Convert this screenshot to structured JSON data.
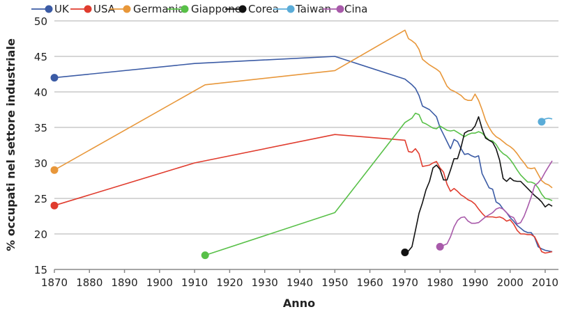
{
  "chart_data": {
    "type": "line",
    "title": "",
    "xlabel": "Anno",
    "ylabel": "% occupati nel settore industriale",
    "xlim": [
      1870,
      2013
    ],
    "ylim": [
      15,
      50
    ],
    "xticks": [
      1870,
      1880,
      1890,
      1900,
      1910,
      1920,
      1930,
      1940,
      1950,
      1960,
      1970,
      1980,
      1990,
      2000,
      2010
    ],
    "yticks": [
      15,
      20,
      25,
      30,
      35,
      40,
      45,
      50
    ],
    "grid": "horizontal",
    "legend": "top",
    "series": [
      {
        "name": "UK",
        "color": "#3b5ba5",
        "x": [
          1870,
          1910,
          1950,
          1970,
          1972,
          1973,
          1974,
          1975,
          1977,
          1979,
          1980,
          1981,
          1982,
          1983,
          1984,
          1985,
          1986,
          1987,
          1988,
          1989,
          1990,
          1991,
          1992,
          1993,
          1994,
          1995,
          1996,
          1997,
          1998,
          1999,
          2000,
          2001,
          2002,
          2003,
          2004,
          2005,
          2006,
          2007,
          2008,
          2009,
          2010,
          2011,
          2012
        ],
        "y": [
          42,
          44,
          45,
          41.8,
          41,
          40.5,
          39.5,
          38,
          37.5,
          36.5,
          35,
          34,
          33,
          32,
          33.3,
          33,
          32,
          31.2,
          31.3,
          31,
          30.8,
          31,
          28.5,
          27.5,
          26.5,
          26.3,
          24.5,
          24.2,
          23.5,
          23,
          22.3,
          21.8,
          21.2,
          20.8,
          20.4,
          20.2,
          20.2,
          19.5,
          18.2,
          17.9,
          17.7,
          17.6,
          17.5
        ]
      },
      {
        "name": "USA",
        "color": "#e03c2e",
        "x": [
          1870,
          1910,
          1950,
          1970,
          1971,
          1972,
          1973,
          1974,
          1975,
          1976,
          1977,
          1978,
          1979,
          1980,
          1981,
          1982,
          1983,
          1984,
          1985,
          1986,
          1987,
          1988,
          1989,
          1990,
          1991,
          1992,
          1993,
          1994,
          1995,
          1996,
          1997,
          1998,
          1999,
          2000,
          2001,
          2002,
          2003,
          2004,
          2005,
          2006,
          2007,
          2008,
          2009,
          2010,
          2011,
          2012
        ],
        "y": [
          24,
          30,
          34,
          33.2,
          31.6,
          31.5,
          32,
          31.3,
          29.5,
          29.6,
          29.7,
          30,
          30.2,
          29.3,
          28.7,
          27,
          26,
          26.4,
          26,
          25.5,
          25.2,
          24.8,
          24.6,
          24.2,
          23.5,
          22.9,
          22.4,
          22.4,
          22.4,
          22.3,
          22.4,
          22.2,
          21.8,
          22,
          21.4,
          20.5,
          20,
          20,
          19.9,
          19.9,
          19.6,
          18.6,
          17.5,
          17.3,
          17.4,
          17.5
        ]
      },
      {
        "name": "Germania",
        "color": "#e8973a",
        "x": [
          1870,
          1913,
          1950,
          1970,
          1971,
          1972,
          1973,
          1974,
          1975,
          1976,
          1977,
          1978,
          1979,
          1980,
          1981,
          1982,
          1983,
          1984,
          1985,
          1986,
          1987,
          1988,
          1989,
          1990,
          1991,
          1992,
          1993,
          1994,
          1995,
          1996,
          1997,
          1998,
          1999,
          2000,
          2001,
          2002,
          2003,
          2004,
          2005,
          2006,
          2007,
          2008,
          2009,
          2010,
          2011,
          2012
        ],
        "y": [
          29,
          41,
          43,
          48.7,
          47.5,
          47.2,
          46.8,
          46,
          44.6,
          44.2,
          43.8,
          43.5,
          43.2,
          42.8,
          41.8,
          40.8,
          40.3,
          40.1,
          39.8,
          39.5,
          39,
          38.8,
          38.8,
          39.7,
          38.8,
          37.5,
          36,
          35,
          34.2,
          33.7,
          33.4,
          33,
          32.6,
          32.3,
          31.9,
          31.3,
          30.6,
          30,
          29.3,
          29.2,
          29.3,
          28.4,
          27.5,
          27.1,
          26.9,
          26.5
        ]
      },
      {
        "name": "Giappone",
        "color": "#58c048",
        "x": [
          1913,
          1950,
          1970,
          1971,
          1972,
          1973,
          1974,
          1975,
          1976,
          1977,
          1978,
          1979,
          1980,
          1981,
          1982,
          1983,
          1984,
          1985,
          1986,
          1987,
          1988,
          1989,
          1990,
          1991,
          1992,
          1993,
          1994,
          1995,
          1996,
          1997,
          1998,
          1999,
          2000,
          2001,
          2002,
          2003,
          2004,
          2005,
          2006,
          2007,
          2008,
          2009,
          2010,
          2011,
          2012
        ],
        "y": [
          17,
          23,
          35.7,
          36,
          36.3,
          37,
          36.8,
          35.7,
          35.5,
          35.2,
          34.9,
          34.8,
          35.2,
          34.9,
          34.6,
          34.5,
          34.6,
          34.3,
          34,
          33.7,
          34,
          34.2,
          34.2,
          34.4,
          34.2,
          33.7,
          33.2,
          33.1,
          32.6,
          31.8,
          31.3,
          31,
          30.5,
          29.8,
          29,
          28.3,
          27.8,
          27.3,
          27.3,
          27.1,
          26.5,
          25.6,
          25,
          24.9,
          24.7
        ]
      },
      {
        "name": "Corea",
        "color": "#111111",
        "x": [
          1970,
          1971,
          1972,
          1973,
          1974,
          1975,
          1976,
          1977,
          1978,
          1979,
          1980,
          1981,
          1982,
          1983,
          1984,
          1985,
          1986,
          1987,
          1988,
          1989,
          1990,
          1991,
          1992,
          1993,
          1994,
          1995,
          1996,
          1997,
          1998,
          1999,
          2000,
          2001,
          2002,
          2003,
          2004,
          2005,
          2006,
          2007,
          2008,
          2009,
          2010,
          2011,
          2012
        ],
        "y": [
          17.4,
          17.6,
          18.2,
          20.5,
          22.9,
          24.4,
          26.2,
          27.4,
          29.3,
          29.7,
          29.1,
          27.6,
          27.6,
          29,
          30.6,
          30.6,
          32.2,
          34.2,
          34.5,
          34.6,
          35.2,
          36.5,
          34.8,
          33.5,
          33.2,
          32.9,
          32,
          30.4,
          27.8,
          27.4,
          27.9,
          27.5,
          27.4,
          27.4,
          26.9,
          26.4,
          25.9,
          25.4,
          25,
          24.5,
          23.8,
          24.2,
          23.9
        ]
      },
      {
        "name": "Taiwan",
        "color": "#5aacd8",
        "x": [
          2009,
          2010,
          2011,
          2012
        ],
        "y": [
          35.8,
          36.2,
          36.3,
          36.2
        ]
      },
      {
        "name": "Cina",
        "color": "#a85aaa",
        "x": [
          1980,
          1981,
          1982,
          1983,
          1984,
          1985,
          1986,
          1987,
          1988,
          1989,
          1990,
          1991,
          1992,
          1993,
          1994,
          1995,
          1996,
          1997,
          1998,
          1999,
          2000,
          2001,
          2002,
          2003,
          2004,
          2005,
          2006,
          2007,
          2008,
          2009,
          2010,
          2011,
          2012
        ],
        "y": [
          18.2,
          18.4,
          18.6,
          19.6,
          21,
          21.9,
          22.3,
          22.4,
          21.8,
          21.5,
          21.5,
          21.6,
          22,
          22.4,
          22.7,
          23,
          23.5,
          23.7,
          23.5,
          23,
          22.5,
          22.3,
          21.4,
          21.6,
          22.5,
          23.8,
          25.2,
          26.8,
          27.2,
          27.8,
          28.7,
          29.5,
          30.3
        ]
      }
    ]
  }
}
